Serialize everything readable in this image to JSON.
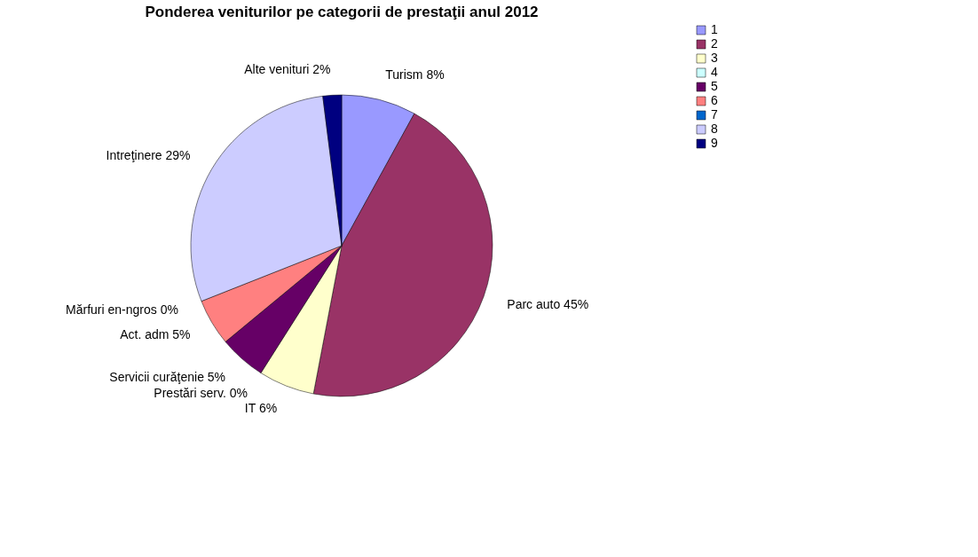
{
  "chart_data": {
    "type": "pie",
    "title": "Ponderea veniturilor pe categorii de prestaţii anul 2012",
    "categories": [
      "1",
      "2",
      "3",
      "4",
      "5",
      "6",
      "7",
      "8",
      "9"
    ],
    "values": [
      8,
      45,
      6,
      0,
      5,
      5,
      0,
      29,
      2
    ],
    "value_labels": [
      "Turism 8%",
      "Parc auto 45%",
      "IT 6%",
      "Prestări serv. 0%",
      "Servicii curăţenie 5%",
      "Act. adm 5%",
      "Mărfuri en-ngros 0%",
      "Intreţinere 29%",
      "Alte venituri 2%"
    ],
    "colors": [
      "#9999ff",
      "#993366",
      "#ffffcc",
      "#ccffff",
      "#660066",
      "#ff8080",
      "#0066cc",
      "#ccccff",
      "#000080"
    ],
    "legend": "right"
  }
}
